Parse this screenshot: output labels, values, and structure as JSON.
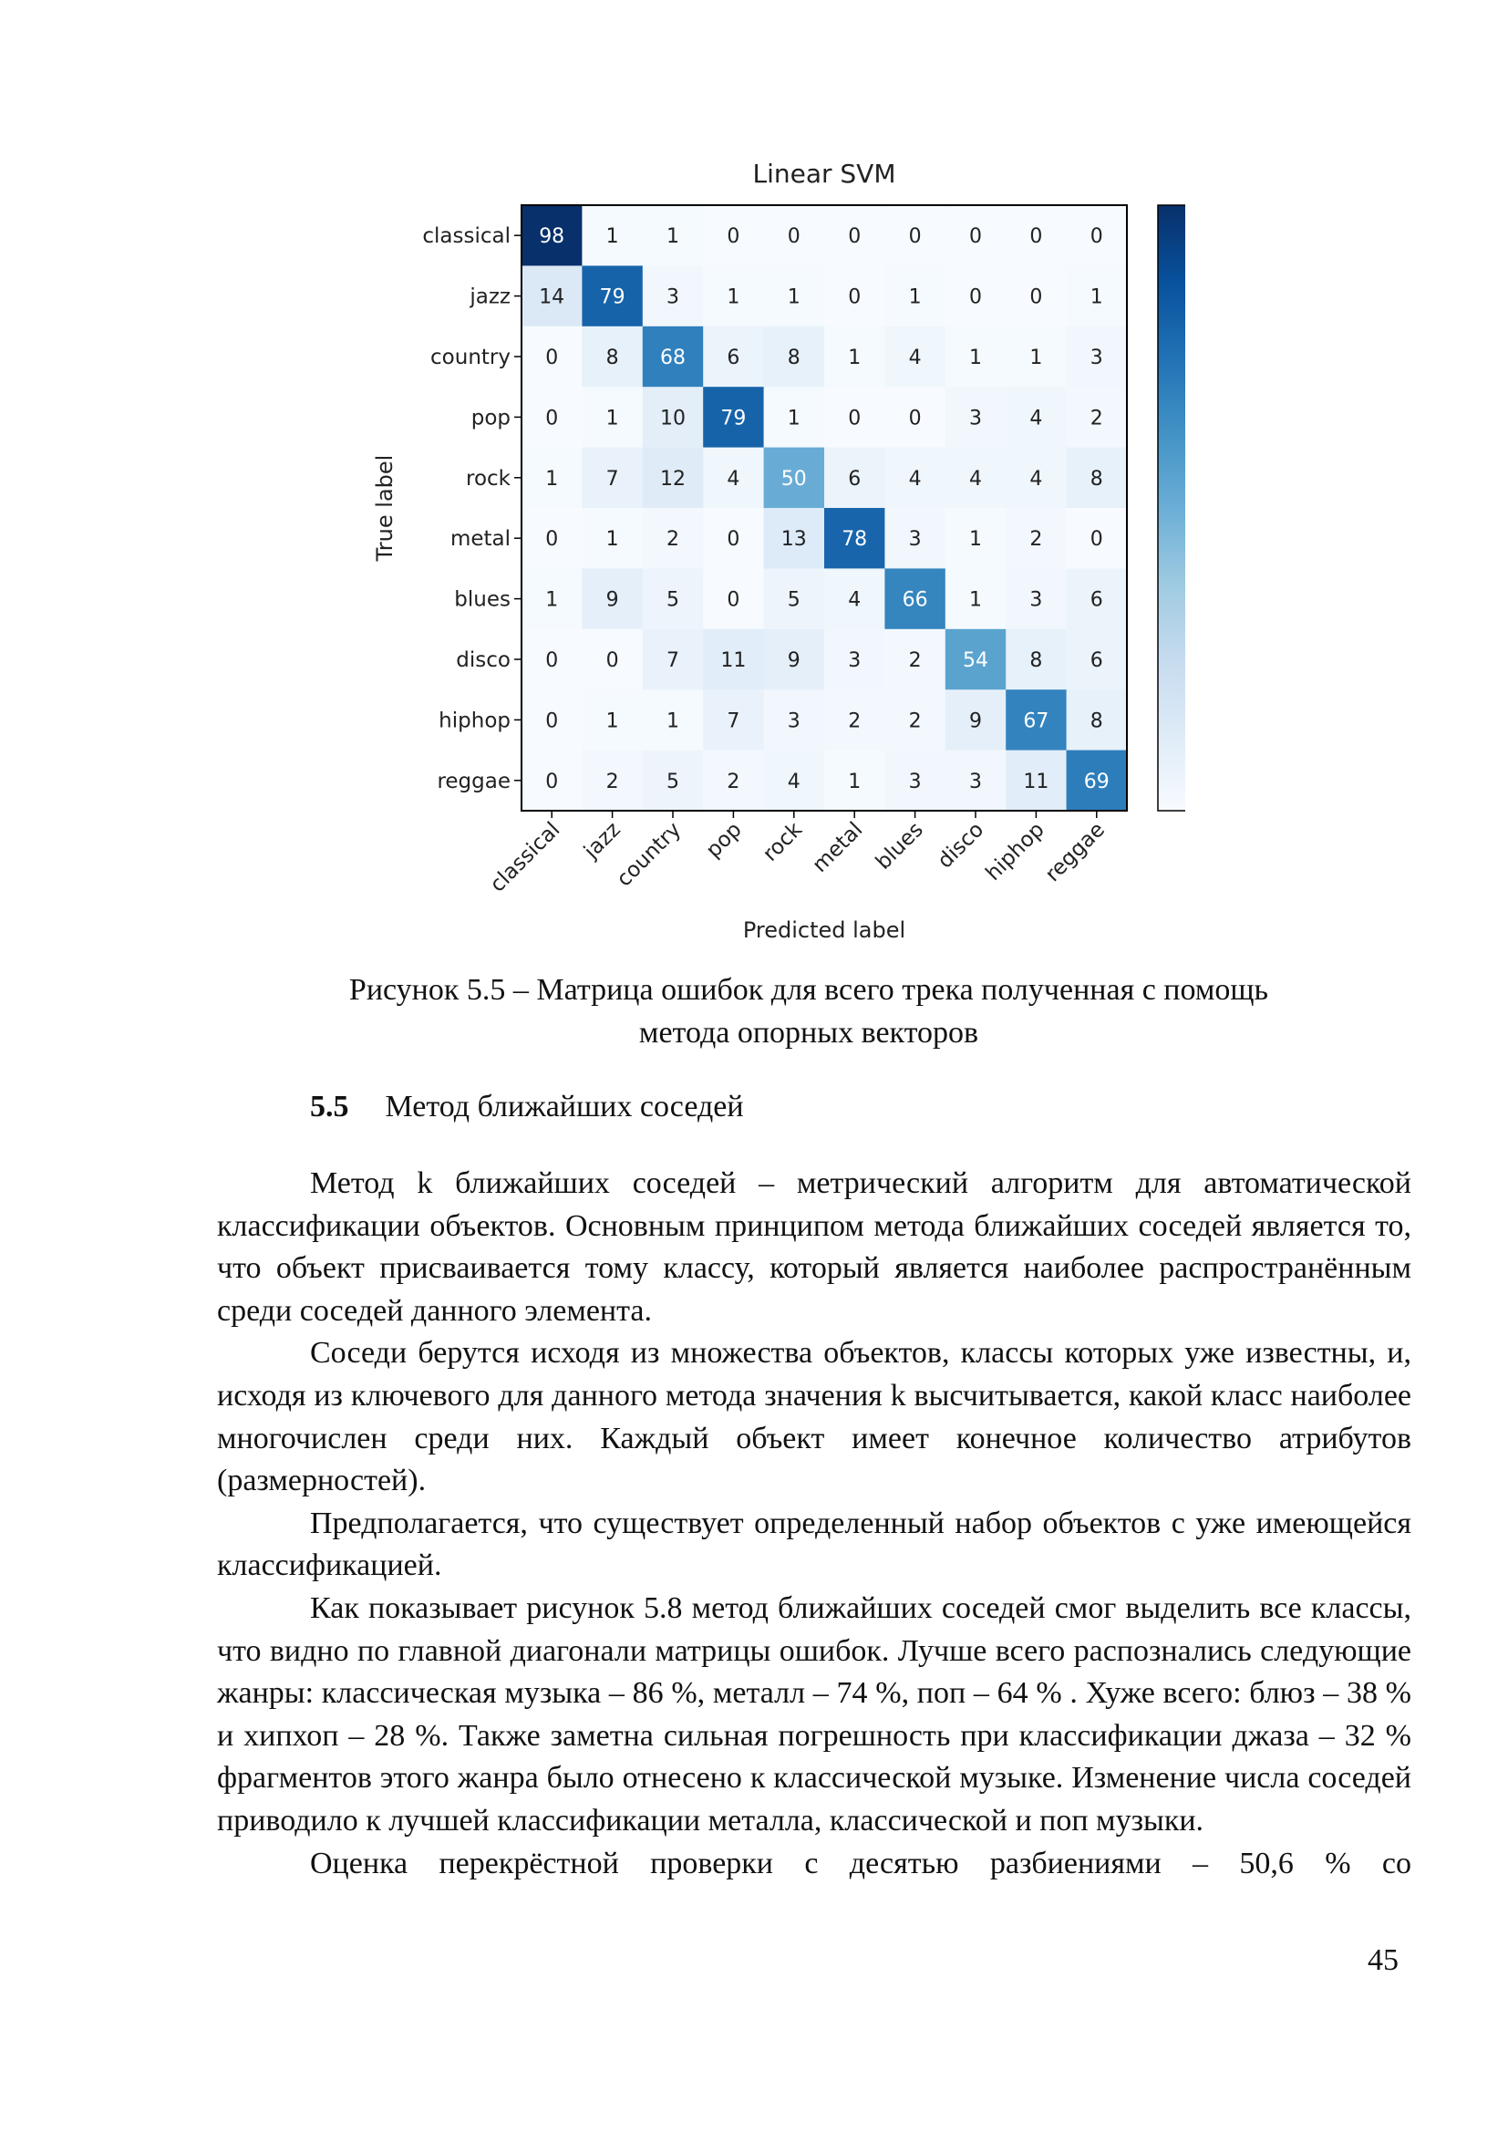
{
  "chart_data": {
    "type": "heatmap",
    "title": "Linear SVM",
    "xlabel": "Predicted label",
    "ylabel": "True label",
    "row_labels": [
      "classical",
      "jazz",
      "country",
      "pop",
      "rock",
      "metal",
      "blues",
      "disco",
      "hiphop",
      "reggae"
    ],
    "col_labels": [
      "classical",
      "jazz",
      "country",
      "pop",
      "rock",
      "metal",
      "blues",
      "disco",
      "hiphop",
      "reggae"
    ],
    "values": [
      [
        98,
        1,
        1,
        0,
        0,
        0,
        0,
        0,
        0,
        0
      ],
      [
        14,
        79,
        3,
        1,
        1,
        0,
        1,
        0,
        0,
        1
      ],
      [
        0,
        8,
        68,
        6,
        8,
        1,
        4,
        1,
        1,
        3
      ],
      [
        0,
        1,
        10,
        79,
        1,
        0,
        0,
        3,
        4,
        2
      ],
      [
        1,
        7,
        12,
        4,
        50,
        6,
        4,
        4,
        4,
        8
      ],
      [
        0,
        1,
        2,
        0,
        13,
        78,
        3,
        1,
        2,
        0
      ],
      [
        1,
        9,
        5,
        0,
        5,
        4,
        66,
        1,
        3,
        6
      ],
      [
        0,
        0,
        7,
        11,
        9,
        3,
        2,
        54,
        8,
        6
      ],
      [
        0,
        1,
        1,
        7,
        3,
        2,
        2,
        9,
        67,
        8
      ],
      [
        0,
        2,
        5,
        2,
        4,
        1,
        3,
        3,
        11,
        69
      ]
    ],
    "colormap": "Blues",
    "value_range": [
      0,
      98
    ],
    "colorbar": {
      "ticks": [
        0,
        20,
        40,
        60,
        80
      ]
    },
    "grid": false
  },
  "caption": {
    "line1": "Рисунок 5.5 – Матрица ошибок для всего трека полученная с помощь",
    "line2": "метода опорных векторов"
  },
  "section": {
    "number": "5.5",
    "title": "Метод ближайших соседей"
  },
  "paragraphs": [
    "Метод k ближайших соседей – метрический алгоритм для автоматической классификации объектов. Основным принципом метода ближайших соседей является то, что объект присваивается тому классу, который является наиболее распространённым среди соседей данного элемента.",
    "Соседи берутся исходя из множества объектов, классы которых уже известны, и, исходя из ключевого для данного метода значения k высчитывается, какой класс наиболее многочислен среди них. Каждый объект имеет конечное количество атрибутов (размерностей).",
    "Предполагается, что существует определенный набор объектов с уже имеющейся классификацией.",
    "Как показывает рисунок 5.8 метод ближайших соседей смог выделить все классы, что видно по главной диагонали матрицы ошибок. Лучше всего распознались следующие жанры: классическая музыка – 86 %, металл – 74 %, поп – 64 % . Хуже всего: блюз – 38 % и хипхоп – 28 %. Также заметна сильная погрешность при классификации джаза – 32 % фрагментов этого жанра было отнесено к классической музыке. Изменение числа соседей приводило к лучшей классификации металла, классической и поп музыки.",
    "Оценка перекрёстной проверки с десятью разбиениями – 50,6 % со"
  ],
  "page_number": "45"
}
